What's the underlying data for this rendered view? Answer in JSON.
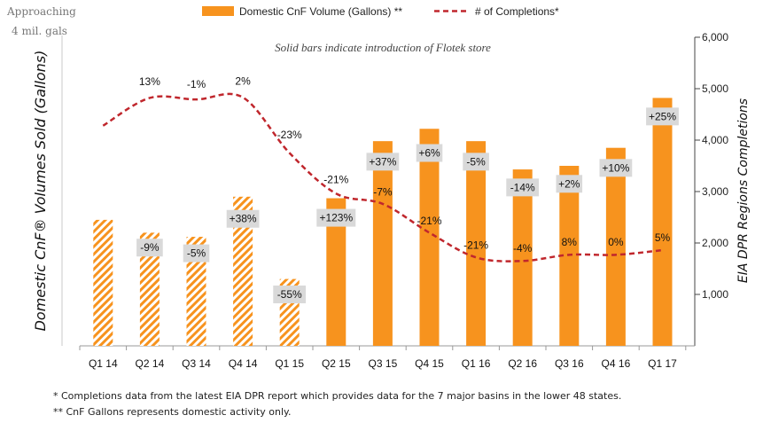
{
  "corner_note": [
    "Approaching",
    "4 mil. gals"
  ],
  "chart_data": {
    "type": "bar+line",
    "subtitle": "Solid bars indicate introduction of Flotek store",
    "ylabel_left": "Domestic CnF® Volumes Sold (Gallons)",
    "ylabel_right": "EIA DPR Regions Completions",
    "categories": [
      "Q1 14",
      "Q2 14",
      "Q3 14",
      "Q4 14",
      "Q1 15",
      "Q2 15",
      "Q3 15",
      "Q4 15",
      "Q1 16",
      "Q2 16",
      "Q3 16",
      "Q4 16",
      "Q1 17"
    ],
    "y_right_ticks": [
      "1,000",
      "2,000",
      "3,000",
      "4,000",
      "5,000",
      "6,000"
    ],
    "ylim_right": [
      0,
      6000
    ],
    "bars": {
      "name": "Domestic CnF Volume (Gallons) **",
      "relative_values": [
        2450,
        2200,
        2120,
        2900,
        1300,
        2870,
        3980,
        4220,
        3980,
        3430,
        3500,
        3850,
        4820
      ],
      "hatched": [
        true,
        true,
        true,
        true,
        true,
        false,
        false,
        false,
        false,
        false,
        false,
        false,
        false
      ],
      "labels": [
        "",
        "-9%",
        "-5%",
        "+38%",
        "-55%",
        "+123%",
        "+37%",
        "+6%",
        "-5%",
        "-14%",
        "+2%",
        "+10%",
        "+25%"
      ],
      "label_levels": [
        0,
        1910,
        1800,
        2470,
        1000,
        2490,
        3580,
        3750,
        3580,
        3080,
        3150,
        3460,
        4460
      ],
      "color": "#F7931E"
    },
    "line": {
      "name": "# of Completions*",
      "values": [
        4280,
        4820,
        4790,
        4830,
        3750,
        2960,
        2760,
        2200,
        1720,
        1650,
        1770,
        1770,
        1860
      ],
      "labels": [
        "",
        "13%",
        "-1%",
        "2%",
        "-23%",
        "-21%",
        "-7%",
        "-21%",
        "-21%",
        "-4%",
        "8%",
        "0%",
        "5%"
      ],
      "label_levels": [
        0,
        5140,
        5090,
        5150,
        4100,
        3230,
        2990,
        2430,
        1960,
        1900,
        2020,
        2020,
        2100
      ],
      "color": "#C0272D"
    }
  },
  "footnotes": [
    "* Completions data from the latest EIA DPR report which provides data for the 7 major basins in the lower 48 states.",
    "** CnF Gallons represents domestic activity only."
  ]
}
